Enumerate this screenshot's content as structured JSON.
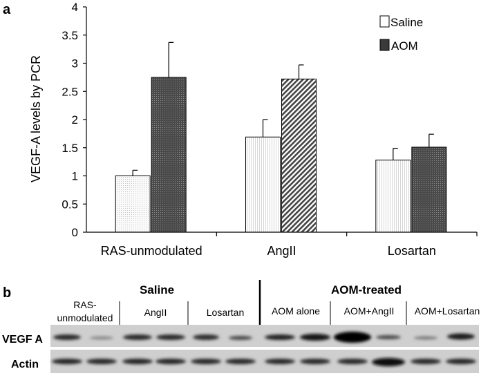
{
  "panel_a": {
    "letter": "a"
  },
  "panel_b": {
    "letter": "b",
    "group_headers": [
      "Saline",
      "AOM-treated"
    ],
    "lane_labels": [
      [
        "RAS-",
        "unmodulated"
      ],
      [
        "AngII"
      ],
      [
        "Losartan"
      ],
      [
        "AOM alone"
      ],
      [
        "AOM+AngII"
      ],
      [
        "AOM+Losartan"
      ]
    ],
    "row_labels": [
      "VEGF A",
      "Actin"
    ]
  },
  "chart_data": {
    "type": "bar",
    "categories": [
      "RAS-unmodulated",
      "AngII",
      "Losartan"
    ],
    "series": [
      {
        "name": "Saline",
        "values": [
          1.0,
          1.69,
          1.28
        ],
        "errors": [
          0.1,
          0.31,
          0.21
        ],
        "color": "#f2f2f2"
      },
      {
        "name": "AOM",
        "values": [
          2.75,
          2.72,
          1.51
        ],
        "errors": [
          0.62,
          0.25,
          0.23
        ],
        "color": "#3a3a3a"
      }
    ],
    "ylabel": "VEGF-A levels by PCR",
    "xlabel": "",
    "ylim": [
      0,
      4
    ],
    "yticks": [
      "0",
      "0.5",
      "1",
      "1.5",
      "2",
      "2.5",
      "3",
      "3.5",
      "4"
    ],
    "legend_position": "top-right",
    "grid": false
  },
  "colors": {
    "saline_fill": "#f2f2f2",
    "aom_fill": "#3a3a3a",
    "axis": "#000000",
    "blot_background": "#cfcfcf"
  }
}
